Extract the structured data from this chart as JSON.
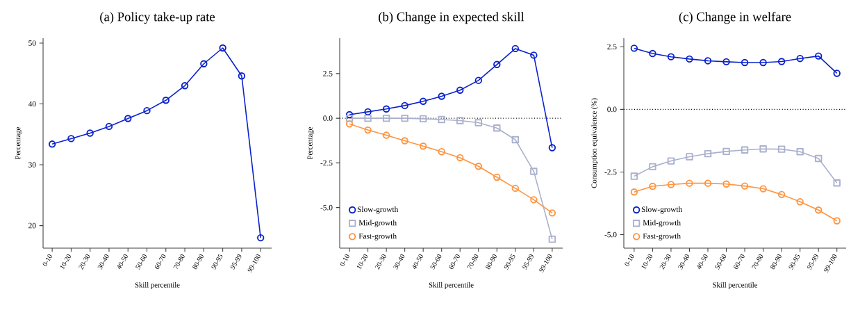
{
  "chart_data": [
    {
      "type": "line",
      "title": "(a) Policy take-up rate",
      "xlabel": "Skill percentile",
      "ylabel": "Percentage",
      "categories": [
        "0-10",
        "10-20",
        "20-30",
        "30-40",
        "40-50",
        "50-60",
        "60-70",
        "70-80",
        "80-90",
        "90-95",
        "95-99",
        "99-100"
      ],
      "values": [
        33.4,
        34.3,
        35.2,
        36.3,
        37.6,
        38.9,
        40.6,
        43.0,
        46.6,
        49.2,
        44.6,
        18.0
      ],
      "color": "#0a22cc",
      "marker": "circle",
      "ylim": [
        16.3,
        50.8
      ],
      "yticks": [
        20,
        30,
        40,
        50
      ]
    },
    {
      "type": "line",
      "title": "(b) Change in expected skill",
      "xlabel": "Skill percentile",
      "ylabel": "Percentage",
      "categories": [
        "0-10",
        "10-20",
        "20-30",
        "30-40",
        "40-50",
        "50-60",
        "60-70",
        "70-80",
        "80-90",
        "90-95",
        "95-99",
        "99-100"
      ],
      "series": [
        {
          "name": "Slow-growth",
          "color": "#0a22cc",
          "marker": "circle",
          "values": [
            0.2,
            0.36,
            0.52,
            0.71,
            0.95,
            1.23,
            1.57,
            2.12,
            3.01,
            3.9,
            3.53,
            -1.65
          ]
        },
        {
          "name": "Mid-growth",
          "color": "#aab0cc",
          "marker": "square",
          "values": [
            0.0,
            0.0,
            0.0,
            0.0,
            -0.03,
            -0.07,
            -0.13,
            -0.25,
            -0.55,
            -1.2,
            -2.97,
            -6.77
          ]
        },
        {
          "name": "Fast-growth",
          "color": "#ff9440",
          "marker": "circle",
          "values": [
            -0.32,
            -0.66,
            -0.95,
            -1.26,
            -1.56,
            -1.87,
            -2.21,
            -2.69,
            -3.3,
            -3.92,
            -4.56,
            -5.3
          ]
        }
      ],
      "ylim": [
        -7.27,
        4.48
      ],
      "yticks": [
        {
          "value": -5,
          "label": "-5.0"
        },
        {
          "value": -2.5,
          "label": "-2.5"
        },
        {
          "value": 0,
          "label": "0.0"
        },
        2.5
      ],
      "ref_lines": [
        {
          "axis": "y",
          "value": 0,
          "line_style": "dotted",
          "color": "#000000"
        }
      ],
      "legend": "bottom left"
    },
    {
      "type": "line",
      "title": "(c) Change in welfare",
      "xlabel": "Skill percentile",
      "ylabel": "Consumption equivalence (%)",
      "categories": [
        "0-10",
        "10-20",
        "20-30",
        "30-40",
        "40-50",
        "50-60",
        "60-70",
        "70-80",
        "80-90",
        "90-95",
        "95-99",
        "99-100"
      ],
      "series": [
        {
          "name": "Slow-growth",
          "color": "#0a22cc",
          "marker": "circle",
          "values": [
            2.44,
            2.23,
            2.1,
            2.01,
            1.94,
            1.9,
            1.87,
            1.87,
            1.91,
            2.03,
            2.13,
            1.44
          ]
        },
        {
          "name": "Mid-growth",
          "color": "#aab0cc",
          "marker": "square",
          "values": [
            -2.67,
            -2.29,
            -2.06,
            -1.89,
            -1.77,
            -1.68,
            -1.62,
            -1.58,
            -1.59,
            -1.69,
            -1.96,
            -2.94
          ]
        },
        {
          "name": "Fast-growth",
          "color": "#ff9440",
          "marker": "circle",
          "values": [
            -3.3,
            -3.07,
            -3.0,
            -2.95,
            -2.95,
            -2.98,
            -3.06,
            -3.17,
            -3.4,
            -3.69,
            -4.02,
            -4.45
          ]
        }
      ],
      "ylim": [
        -5.54,
        2.84
      ],
      "yticks": [
        {
          "value": -5,
          "label": "-5.0"
        },
        {
          "value": -2.5,
          "label": "-2.5"
        },
        {
          "value": 0,
          "label": "0.0"
        },
        2.5
      ],
      "ref_lines": [
        {
          "axis": "y",
          "value": 0,
          "line_style": "dotted",
          "color": "#000000"
        }
      ],
      "legend": "bottom left"
    }
  ]
}
